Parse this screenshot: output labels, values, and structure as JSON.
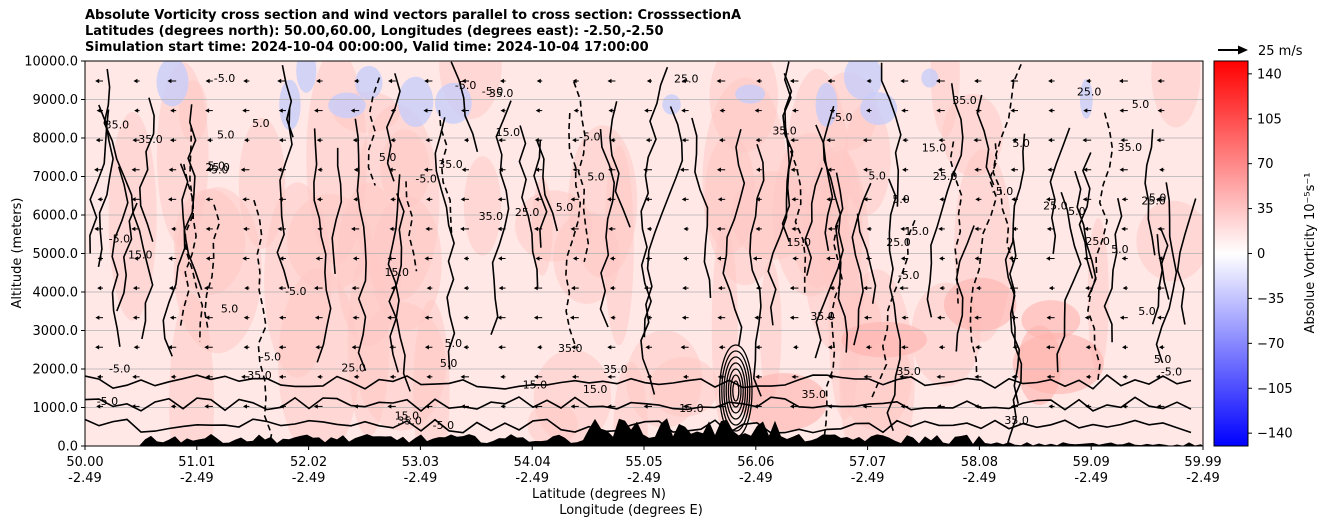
{
  "title_lines": [
    "Absolute Vorticity cross section and wind vectors parallel to cross section: CrosssectionA",
    "Latitudes (degrees north): 50.00,60.00, Longitudes (degrees east): -2.50,-2.50",
    "Simulation start time: 2024-10-04 00:00:00, Valid time: 2024-10-04 17:00:00"
  ],
  "chart_data": {
    "type": "heatmap",
    "description_kind": "filled contour cross section with line contours, terrain and wind vectors",
    "ylabel": "Altitude (meters)",
    "xlabel_lines": [
      "Latitude (degrees N)",
      "Longitude (degrees E)"
    ],
    "ylim": [
      0,
      10000
    ],
    "yticks": [
      "0.0",
      "1000.0",
      "2000.0",
      "3000.0",
      "4000.0",
      "5000.0",
      "6000.0",
      "7000.0",
      "8000.0",
      "9000.0",
      "10000.0"
    ],
    "xticks": [
      {
        "lat": "50.00",
        "lon": "-2.49"
      },
      {
        "lat": "51.01",
        "lon": "-2.49"
      },
      {
        "lat": "52.02",
        "lon": "-2.49"
      },
      {
        "lat": "53.03",
        "lon": "-2.49"
      },
      {
        "lat": "54.04",
        "lon": "-2.49"
      },
      {
        "lat": "55.05",
        "lon": "-2.49"
      },
      {
        "lat": "56.06",
        "lon": "-2.49"
      },
      {
        "lat": "57.07",
        "lon": "-2.49"
      },
      {
        "lat": "58.08",
        "lon": "-2.49"
      },
      {
        "lat": "59.09",
        "lon": "-2.49"
      },
      {
        "lat": "59.99",
        "lon": "-2.49"
      }
    ],
    "grid": "horizontal",
    "colorbar": {
      "label": "Absolue Vorticity 10⁻⁵s⁻¹",
      "range": [
        -150,
        150
      ],
      "ticks": [
        "140",
        "105",
        "70",
        "35",
        "0",
        "−35",
        "−70",
        "−105",
        "−140"
      ],
      "colormap": "bwr",
      "colors": {
        "low": "#0000ff",
        "mid": "#ffffff",
        "high": "#ff0000"
      }
    },
    "quiver_key": "25 m/s",
    "contour_labels": [
      "5.0",
      "15.0",
      "25.0",
      "35.0",
      "-5.0"
    ]
  }
}
